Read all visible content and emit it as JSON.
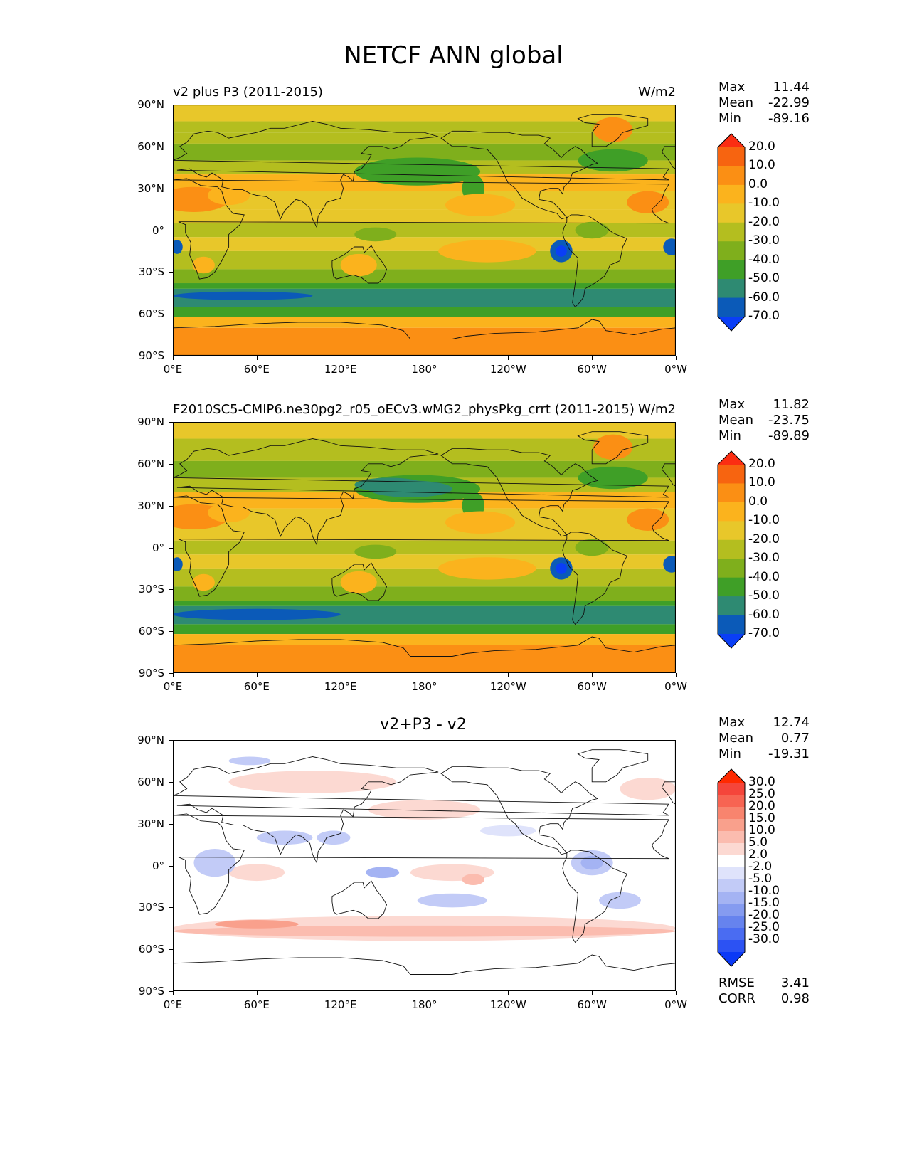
{
  "figure": {
    "title": "NETCF ANN global"
  },
  "axes": {
    "y_ticks": [
      "90°N",
      "60°N",
      "30°N",
      "0°",
      "30°S",
      "60°S",
      "90°S"
    ],
    "x_ticks": [
      "0°E",
      "60°E",
      "120°E",
      "180°",
      "120°W",
      "60°W",
      "0°W"
    ],
    "xlim": [
      0,
      360
    ],
    "ylim": [
      -90,
      90
    ]
  },
  "chart_data": [
    {
      "type": "heatmap",
      "title_left": "v2 plus P3 (2011-2015)",
      "title_right": "W/m2",
      "stats": {
        "Max": "11.44",
        "Mean": "-22.99",
        "Min": "-89.16"
      },
      "colorbar_labels": [
        "20.0",
        "10.0",
        "0.0",
        "-10.0",
        "-20.0",
        "-30.0",
        "-40.0",
        "-50.0",
        "-60.0",
        "-70.0"
      ],
      "colorbar_colors": [
        "#fb2d12",
        "#f76410",
        "#fb8f14",
        "#fbb31d",
        "#e8c72a",
        "#b4be1f",
        "#7faf1c",
        "#3f9f27",
        "#2e8a72",
        "#0b5ab8",
        "#0a3ef6"
      ]
    },
    {
      "type": "heatmap",
      "title_left": "F2010SC5-CMIP6.ne30pg2_r05_oECv3.wMG2_physPkg_crrt (2011-2015)",
      "title_right": "W/m2",
      "stats": {
        "Max": "11.82",
        "Mean": "-23.75",
        "Min": "-89.89"
      },
      "colorbar_labels": [
        "20.0",
        "10.0",
        "0.0",
        "-10.0",
        "-20.0",
        "-30.0",
        "-40.0",
        "-50.0",
        "-60.0",
        "-70.0"
      ],
      "colorbar_colors": [
        "#fb2d12",
        "#f76410",
        "#fb8f14",
        "#fbb31d",
        "#e8c72a",
        "#b4be1f",
        "#7faf1c",
        "#3f9f27",
        "#2e8a72",
        "#0b5ab8",
        "#0a3ef6"
      ]
    },
    {
      "type": "heatmap",
      "title_center": "v2+P3 - v2",
      "stats": {
        "Max": "12.74",
        "Mean": "0.77",
        "Min": "-19.31"
      },
      "metrics": {
        "RMSE": "3.41",
        "CORR": "0.98"
      },
      "colorbar_labels": [
        "30.0",
        "25.0",
        "20.0",
        "15.0",
        "10.0",
        "5.0",
        "2.0",
        "-2.0",
        "-5.0",
        "-10.0",
        "-15.0",
        "-20.0",
        "-25.0",
        "-30.0"
      ],
      "colorbar_colors": [
        "#ff2a00",
        "#f5453a",
        "#f76452",
        "#f8846e",
        "#f9a08c",
        "#fbbcaf",
        "#fcd9d2",
        "#ffffff",
        "#dfe3fb",
        "#c2cbf7",
        "#a4b3f3",
        "#859bf0",
        "#6683ee",
        "#4a6cf2",
        "#2c52f3",
        "#0b39f6"
      ]
    }
  ]
}
